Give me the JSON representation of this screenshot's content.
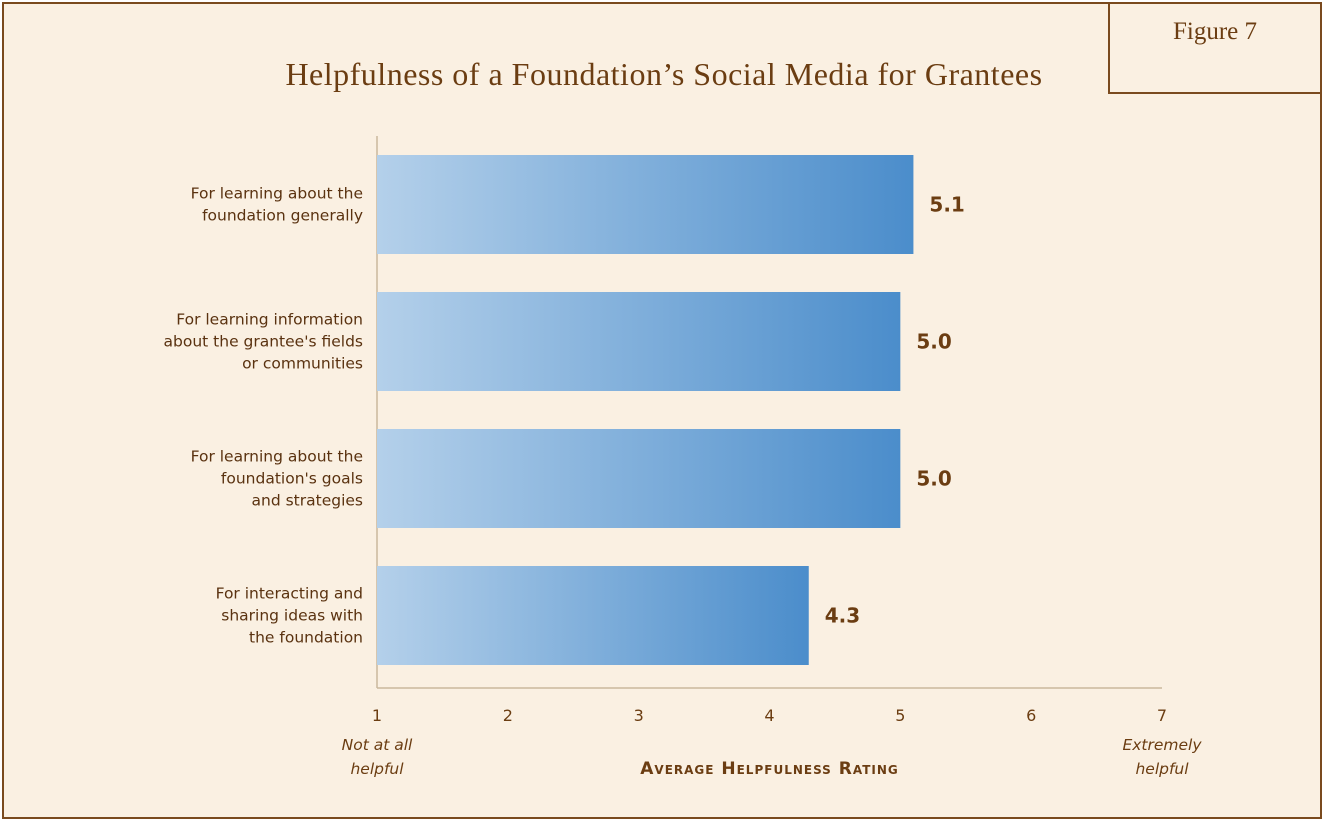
{
  "figure_label": "Figure 7",
  "chart_data": {
    "type": "bar",
    "orientation": "horizontal",
    "title": "Helpfulness of a Foundation’s Social Media for Grantees",
    "categories": [
      [
        "For learning about the",
        "foundation generally"
      ],
      [
        "For learning information",
        "about the grantee's fields",
        "or communities"
      ],
      [
        "For learning about the",
        "foundation's goals",
        "and strategies"
      ],
      [
        "For interacting and",
        "sharing ideas with",
        "the foundation"
      ]
    ],
    "values": [
      5.1,
      5.0,
      5.0,
      4.3
    ],
    "value_labels": [
      "5.1",
      "5.0",
      "5.0",
      "4.3"
    ],
    "xlim": [
      1,
      7
    ],
    "xticks": [
      "1",
      "2",
      "3",
      "4",
      "5",
      "6",
      "7"
    ],
    "xlabel": "Average Helpfulness Rating",
    "x_min_label": [
      "Not at all",
      "helpful"
    ],
    "x_max_label": [
      "Extremely",
      "helpful"
    ],
    "grid": false,
    "colors": {
      "bar_start": "#b4d0ea",
      "bar_end": "#4b8dcb",
      "text": "#6b3d12",
      "background": "#faf0e2",
      "border": "#7a4a1e"
    }
  }
}
